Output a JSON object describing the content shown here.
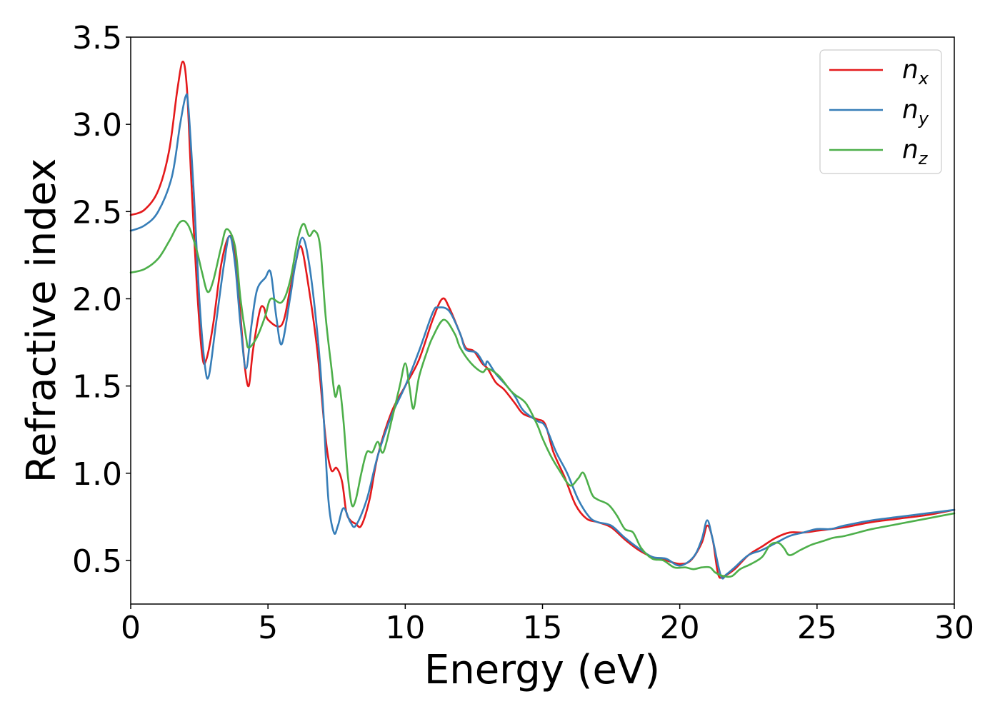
{
  "chart_data": {
    "type": "line",
    "xlabel": "Energy (eV)",
    "ylabel": "Refractive index",
    "xlim": [
      0,
      30
    ],
    "ylim": [
      0.25,
      3.5
    ],
    "xticks": [
      0,
      5,
      10,
      15,
      20,
      25,
      30
    ],
    "xtick_labels": [
      "0",
      "5",
      "10",
      "15",
      "20",
      "25",
      "30"
    ],
    "yticks": [
      0.5,
      1.0,
      1.5,
      2.0,
      2.5,
      3.0,
      3.5
    ],
    "ytick_labels": [
      "0.5",
      "1.0",
      "1.5",
      "2.0",
      "2.5",
      "3.0",
      "3.5"
    ],
    "grid": false,
    "legend_position": "top-right",
    "series": [
      {
        "name": "n",
        "subscript": "x",
        "color": "#e41a1c",
        "points": [
          [
            0,
            2.48
          ],
          [
            0.5,
            2.51
          ],
          [
            1.0,
            2.62
          ],
          [
            1.4,
            2.85
          ],
          [
            1.7,
            3.2
          ],
          [
            1.9,
            3.36
          ],
          [
            2.05,
            3.2
          ],
          [
            2.2,
            2.7
          ],
          [
            2.4,
            2.1
          ],
          [
            2.6,
            1.68
          ],
          [
            2.75,
            1.65
          ],
          [
            3.0,
            1.85
          ],
          [
            3.3,
            2.2
          ],
          [
            3.6,
            2.36
          ],
          [
            3.8,
            2.25
          ],
          [
            4.0,
            1.9
          ],
          [
            4.15,
            1.62
          ],
          [
            4.3,
            1.5
          ],
          [
            4.45,
            1.7
          ],
          [
            4.7,
            1.93
          ],
          [
            4.85,
            1.95
          ],
          [
            5.0,
            1.88
          ],
          [
            5.5,
            1.85
          ],
          [
            5.8,
            2.05
          ],
          [
            6.0,
            2.2
          ],
          [
            6.2,
            2.3
          ],
          [
            6.45,
            2.1
          ],
          [
            6.8,
            1.7
          ],
          [
            7.1,
            1.2
          ],
          [
            7.3,
            1.02
          ],
          [
            7.5,
            1.03
          ],
          [
            7.7,
            0.95
          ],
          [
            7.85,
            0.78
          ],
          [
            8.0,
            0.73
          ],
          [
            8.2,
            0.71
          ],
          [
            8.4,
            0.7
          ],
          [
            8.7,
            0.85
          ],
          [
            9.0,
            1.1
          ],
          [
            9.5,
            1.35
          ],
          [
            10.0,
            1.5
          ],
          [
            10.5,
            1.65
          ],
          [
            11.0,
            1.88
          ],
          [
            11.35,
            2.0
          ],
          [
            11.6,
            1.95
          ],
          [
            12.0,
            1.8
          ],
          [
            12.2,
            1.72
          ],
          [
            12.5,
            1.7
          ],
          [
            12.8,
            1.63
          ],
          [
            13.0,
            1.6
          ],
          [
            13.3,
            1.52
          ],
          [
            13.6,
            1.48
          ],
          [
            14.0,
            1.4
          ],
          [
            14.3,
            1.34
          ],
          [
            14.8,
            1.31
          ],
          [
            15.1,
            1.28
          ],
          [
            15.4,
            1.12
          ],
          [
            15.8,
            0.98
          ],
          [
            16.2,
            0.82
          ],
          [
            16.6,
            0.74
          ],
          [
            17.0,
            0.72
          ],
          [
            17.5,
            0.69
          ],
          [
            18.0,
            0.62
          ],
          [
            18.5,
            0.56
          ],
          [
            19.0,
            0.52
          ],
          [
            19.5,
            0.5
          ],
          [
            20.0,
            0.48
          ],
          [
            20.4,
            0.5
          ],
          [
            20.8,
            0.6
          ],
          [
            21.0,
            0.7
          ],
          [
            21.2,
            0.62
          ],
          [
            21.4,
            0.42
          ],
          [
            21.6,
            0.41
          ],
          [
            22.0,
            0.45
          ],
          [
            22.5,
            0.53
          ],
          [
            23.0,
            0.58
          ],
          [
            23.5,
            0.63
          ],
          [
            24.0,
            0.66
          ],
          [
            24.5,
            0.66
          ],
          [
            25.0,
            0.67
          ],
          [
            25.5,
            0.68
          ],
          [
            26.0,
            0.69
          ],
          [
            27.0,
            0.72
          ],
          [
            28.0,
            0.74
          ],
          [
            29.0,
            0.76
          ],
          [
            30.0,
            0.79
          ]
        ]
      },
      {
        "name": "n",
        "subscript": "y",
        "color": "#377eb8",
        "points": [
          [
            0,
            2.39
          ],
          [
            0.5,
            2.42
          ],
          [
            1.0,
            2.5
          ],
          [
            1.5,
            2.7
          ],
          [
            1.8,
            3.0
          ],
          [
            2.0,
            3.16
          ],
          [
            2.1,
            3.1
          ],
          [
            2.3,
            2.6
          ],
          [
            2.5,
            2.0
          ],
          [
            2.7,
            1.62
          ],
          [
            2.85,
            1.56
          ],
          [
            3.1,
            1.85
          ],
          [
            3.4,
            2.2
          ],
          [
            3.6,
            2.36
          ],
          [
            3.8,
            2.2
          ],
          [
            4.0,
            1.85
          ],
          [
            4.2,
            1.6
          ],
          [
            4.4,
            1.85
          ],
          [
            4.6,
            2.05
          ],
          [
            4.9,
            2.12
          ],
          [
            5.1,
            2.15
          ],
          [
            5.3,
            1.9
          ],
          [
            5.5,
            1.74
          ],
          [
            5.8,
            2.0
          ],
          [
            6.0,
            2.2
          ],
          [
            6.25,
            2.35
          ],
          [
            6.5,
            2.2
          ],
          [
            6.8,
            1.8
          ],
          [
            7.0,
            1.4
          ],
          [
            7.2,
            0.85
          ],
          [
            7.4,
            0.66
          ],
          [
            7.55,
            0.7
          ],
          [
            7.75,
            0.8
          ],
          [
            8.0,
            0.72
          ],
          [
            8.2,
            0.7
          ],
          [
            8.6,
            0.85
          ],
          [
            9.0,
            1.1
          ],
          [
            9.5,
            1.33
          ],
          [
            10.0,
            1.5
          ],
          [
            10.5,
            1.7
          ],
          [
            11.0,
            1.92
          ],
          [
            11.2,
            1.95
          ],
          [
            11.6,
            1.93
          ],
          [
            12.0,
            1.8
          ],
          [
            12.2,
            1.71
          ],
          [
            12.6,
            1.69
          ],
          [
            12.9,
            1.62
          ],
          [
            13.0,
            1.64
          ],
          [
            13.3,
            1.57
          ],
          [
            13.7,
            1.5
          ],
          [
            14.0,
            1.44
          ],
          [
            14.3,
            1.36
          ],
          [
            14.8,
            1.3
          ],
          [
            15.1,
            1.27
          ],
          [
            15.5,
            1.12
          ],
          [
            15.9,
            1.0
          ],
          [
            16.3,
            0.85
          ],
          [
            16.7,
            0.75
          ],
          [
            17.0,
            0.72
          ],
          [
            17.5,
            0.7
          ],
          [
            18.0,
            0.63
          ],
          [
            18.5,
            0.57
          ],
          [
            19.0,
            0.52
          ],
          [
            19.5,
            0.51
          ],
          [
            20.0,
            0.47
          ],
          [
            20.5,
            0.52
          ],
          [
            20.8,
            0.62
          ],
          [
            21.0,
            0.73
          ],
          [
            21.2,
            0.62
          ],
          [
            21.5,
            0.41
          ],
          [
            21.7,
            0.42
          ],
          [
            22.0,
            0.46
          ],
          [
            22.5,
            0.53
          ],
          [
            23.0,
            0.56
          ],
          [
            23.5,
            0.6
          ],
          [
            24.0,
            0.64
          ],
          [
            24.5,
            0.66
          ],
          [
            25.0,
            0.68
          ],
          [
            25.5,
            0.68
          ],
          [
            26.0,
            0.7
          ],
          [
            27.0,
            0.73
          ],
          [
            28.0,
            0.75
          ],
          [
            29.0,
            0.77
          ],
          [
            30.0,
            0.79
          ]
        ]
      },
      {
        "name": "n",
        "subscript": "z",
        "color": "#4daf4a",
        "points": [
          [
            0,
            2.15
          ],
          [
            0.5,
            2.17
          ],
          [
            1.0,
            2.23
          ],
          [
            1.4,
            2.33
          ],
          [
            1.8,
            2.44
          ],
          [
            2.1,
            2.42
          ],
          [
            2.4,
            2.28
          ],
          [
            2.6,
            2.15
          ],
          [
            2.8,
            2.04
          ],
          [
            3.0,
            2.1
          ],
          [
            3.3,
            2.3
          ],
          [
            3.5,
            2.4
          ],
          [
            3.8,
            2.3
          ],
          [
            4.0,
            2.0
          ],
          [
            4.2,
            1.78
          ],
          [
            4.3,
            1.72
          ],
          [
            4.6,
            1.78
          ],
          [
            4.9,
            1.9
          ],
          [
            5.1,
            2.0
          ],
          [
            5.5,
            1.98
          ],
          [
            5.8,
            2.1
          ],
          [
            6.1,
            2.35
          ],
          [
            6.3,
            2.43
          ],
          [
            6.5,
            2.36
          ],
          [
            6.7,
            2.39
          ],
          [
            6.9,
            2.3
          ],
          [
            7.1,
            1.9
          ],
          [
            7.3,
            1.62
          ],
          [
            7.45,
            1.44
          ],
          [
            7.6,
            1.5
          ],
          [
            7.75,
            1.3
          ],
          [
            7.9,
            1.0
          ],
          [
            8.05,
            0.82
          ],
          [
            8.2,
            0.85
          ],
          [
            8.4,
            1.0
          ],
          [
            8.6,
            1.12
          ],
          [
            8.8,
            1.12
          ],
          [
            9.0,
            1.18
          ],
          [
            9.2,
            1.12
          ],
          [
            9.5,
            1.3
          ],
          [
            9.8,
            1.5
          ],
          [
            10.0,
            1.63
          ],
          [
            10.15,
            1.5
          ],
          [
            10.3,
            1.37
          ],
          [
            10.5,
            1.55
          ],
          [
            10.8,
            1.7
          ],
          [
            11.0,
            1.78
          ],
          [
            11.4,
            1.88
          ],
          [
            11.8,
            1.8
          ],
          [
            12.0,
            1.72
          ],
          [
            12.4,
            1.63
          ],
          [
            12.8,
            1.58
          ],
          [
            13.0,
            1.6
          ],
          [
            13.4,
            1.56
          ],
          [
            13.8,
            1.48
          ],
          [
            14.0,
            1.45
          ],
          [
            14.4,
            1.4
          ],
          [
            14.8,
            1.28
          ],
          [
            15.0,
            1.2
          ],
          [
            15.3,
            1.1
          ],
          [
            15.6,
            1.02
          ],
          [
            16.0,
            0.93
          ],
          [
            16.3,
            0.97
          ],
          [
            16.5,
            1.0
          ],
          [
            16.8,
            0.88
          ],
          [
            17.0,
            0.85
          ],
          [
            17.4,
            0.82
          ],
          [
            17.7,
            0.76
          ],
          [
            18.0,
            0.68
          ],
          [
            18.3,
            0.66
          ],
          [
            18.6,
            0.57
          ],
          [
            19.0,
            0.51
          ],
          [
            19.4,
            0.5
          ],
          [
            19.8,
            0.46
          ],
          [
            20.2,
            0.46
          ],
          [
            20.5,
            0.45
          ],
          [
            20.8,
            0.46
          ],
          [
            21.1,
            0.46
          ],
          [
            21.3,
            0.43
          ],
          [
            21.6,
            0.41
          ],
          [
            21.9,
            0.41
          ],
          [
            22.2,
            0.45
          ],
          [
            22.6,
            0.48
          ],
          [
            23.0,
            0.52
          ],
          [
            23.3,
            0.59
          ],
          [
            23.6,
            0.6
          ],
          [
            23.8,
            0.57
          ],
          [
            24.0,
            0.53
          ],
          [
            24.4,
            0.56
          ],
          [
            24.8,
            0.59
          ],
          [
            25.2,
            0.61
          ],
          [
            25.6,
            0.63
          ],
          [
            26.0,
            0.64
          ],
          [
            26.5,
            0.66
          ],
          [
            27.0,
            0.68
          ],
          [
            28.0,
            0.71
          ],
          [
            29.0,
            0.74
          ],
          [
            30.0,
            0.77
          ]
        ]
      }
    ]
  }
}
